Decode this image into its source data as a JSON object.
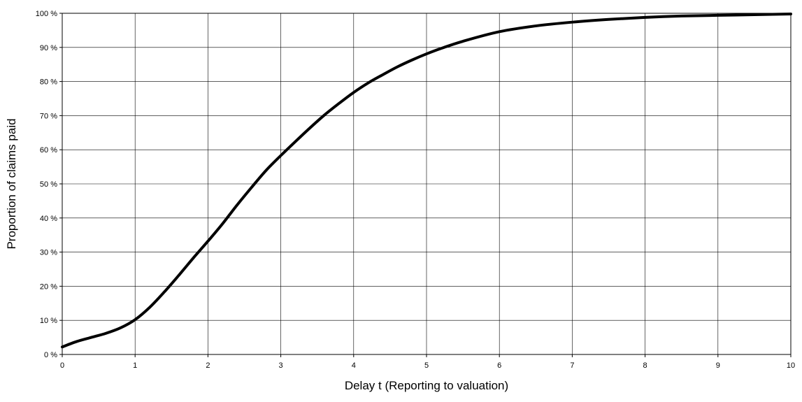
{
  "chart_data": {
    "type": "line",
    "title": "",
    "xlabel": "Delay t (Reporting to valuation)",
    "ylabel": "Proportion of claims paid",
    "xlim": [
      0,
      10
    ],
    "ylim": [
      0,
      100
    ],
    "x_ticks": [
      "0",
      "1",
      "2",
      "3",
      "4",
      "5",
      "6",
      "7",
      "8",
      "9",
      "10"
    ],
    "y_ticks": [
      "0 %",
      "10 %",
      "20 %",
      "30 %",
      "40 %",
      "50 %",
      "60 %",
      "70 %",
      "80 %",
      "90 %",
      "100 %"
    ],
    "grid": true,
    "legend": "none",
    "line_color": "#000000",
    "series": [
      {
        "x": [
          0,
          0.2,
          0.4,
          0.6,
          0.8,
          1.0,
          1.2,
          1.4,
          1.6,
          1.8,
          2.0,
          2.2,
          2.4,
          2.6,
          2.8,
          3.0,
          3.2,
          3.4,
          3.6,
          3.8,
          4.0,
          4.2,
          4.4,
          4.6,
          4.8,
          5.0,
          5.2,
          5.5,
          6.0,
          6.5,
          7.0,
          7.5,
          8.0,
          8.5,
          9.0,
          9.5,
          10.0
        ],
        "values": [
          2.2,
          3.8,
          5.0,
          6.2,
          7.8,
          10.2,
          13.8,
          18.3,
          23.2,
          28.3,
          33.2,
          38.3,
          43.8,
          49.0,
          54.0,
          58.3,
          62.4,
          66.4,
          70.2,
          73.6,
          76.8,
          79.6,
          82.0,
          84.3,
          86.3,
          88.1,
          89.7,
          91.8,
          94.6,
          96.3,
          97.4,
          98.2,
          98.8,
          99.2,
          99.4,
          99.6,
          99.8
        ]
      }
    ]
  }
}
